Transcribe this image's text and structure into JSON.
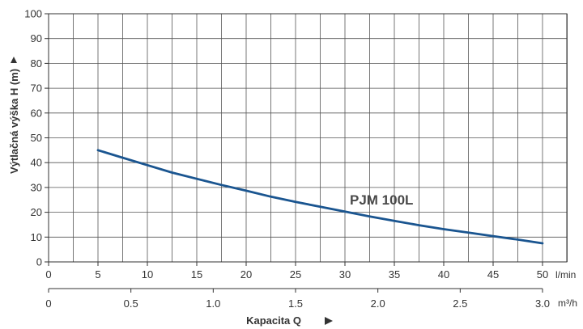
{
  "chart_data": {
    "type": "line",
    "xlabel": "Kapacita Q",
    "ylabel": "Výtlačná výška H (m)",
    "x_unit_primary": "l/min",
    "x_unit_secondary": "m³/h",
    "xlim": [
      0,
      50
    ],
    "ylim": [
      0,
      100
    ],
    "x_ticks": [
      "0",
      "5",
      "10",
      "15",
      "20",
      "25",
      "30",
      "35",
      "40",
      "45",
      "50"
    ],
    "x_ticks_secondary": [
      "0",
      "0.5",
      "1.0",
      "1.5",
      "2.0",
      "2.5",
      "3.0"
    ],
    "y_ticks": [
      "0",
      "10",
      "20",
      "30",
      "40",
      "50",
      "60",
      "70",
      "80",
      "90",
      "100"
    ],
    "grid": true,
    "series": [
      {
        "name": "PJM 100L",
        "color": "#1a5590",
        "x": [
          5,
          7.5,
          10,
          12.5,
          15,
          17.5,
          20,
          22.5,
          25,
          27.5,
          30,
          32.5,
          35,
          37.5,
          40,
          42.5,
          45,
          47.5,
          50
        ],
        "y": [
          45,
          42,
          39,
          36,
          33.5,
          31,
          28.7,
          26.3,
          24.2,
          22.2,
          20.3,
          18.3,
          16.5,
          14.8,
          13.2,
          11.8,
          10.4,
          9.0,
          7.5
        ]
      }
    ]
  }
}
